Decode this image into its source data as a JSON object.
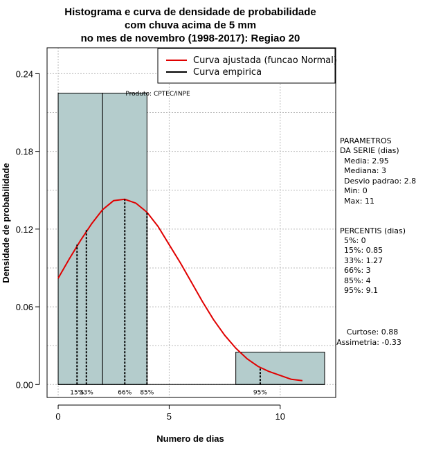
{
  "title_lines": [
    "Histograma e curva de densidade de probabilidade",
    "com chuva acima de 5 mm",
    "no mes de novembro (1998-2017): Regiao 20"
  ],
  "chart_data": {
    "type": "bar",
    "xlabel": "Numero de dias",
    "ylabel": "Densidade de probabilidade",
    "xlim": [
      -0.5,
      12.5
    ],
    "ylim": [
      -0.01,
      0.26
    ],
    "x_ticks": [
      0,
      5,
      10
    ],
    "x_tick_labels": [
      "0",
      "5",
      "10"
    ],
    "y_ticks": [
      0.0,
      0.06,
      0.12,
      0.18,
      0.24
    ],
    "y_tick_labels": [
      "0.00",
      "0.06",
      "0.12",
      "0.18",
      "0.24"
    ],
    "bins": [
      {
        "x0": 0,
        "x1": 2,
        "density": 0.225
      },
      {
        "x0": 2,
        "x1": 4,
        "density": 0.225
      },
      {
        "x0": 4,
        "x1": 6,
        "density": 0.0
      },
      {
        "x0": 6,
        "x1": 8,
        "density": 0.0
      },
      {
        "x0": 8,
        "x1": 12,
        "density": 0.025
      }
    ],
    "grid": true,
    "legend_position": "top-right",
    "bar_color": "#b4cccc",
    "curve_color": "#e00000",
    "series": [
      {
        "name": "Curva ajustada (funcao Normal)",
        "color": "#e00000",
        "x": [
          0,
          0.5,
          1,
          1.5,
          2,
          2.5,
          3,
          3.5,
          4,
          4.5,
          5,
          5.5,
          6,
          6.5,
          7,
          7.5,
          8,
          8.5,
          9,
          9.5,
          10,
          10.5,
          11
        ],
        "y": [
          0.082,
          0.097,
          0.111,
          0.124,
          0.135,
          0.142,
          0.143,
          0.14,
          0.133,
          0.122,
          0.108,
          0.094,
          0.079,
          0.064,
          0.05,
          0.038,
          0.028,
          0.02,
          0.014,
          0.01,
          0.007,
          0.004,
          0.003
        ]
      },
      {
        "name": "Curva empirica",
        "color": "#000000"
      }
    ],
    "percentile_markers": [
      {
        "label": "15%",
        "x": 0.85,
        "y": 0.108
      },
      {
        "label": "33%",
        "x": 1.27,
        "y": 0.12
      },
      {
        "label": "66%",
        "x": 3,
        "y": 0.143
      },
      {
        "label": "85%",
        "x": 4,
        "y": 0.133
      },
      {
        "label": "95%",
        "x": 9.1,
        "y": 0.013
      }
    ],
    "annotation": "Produto: CPTEC/INPE"
  },
  "side_panel": {
    "parametros_lines": [
      "PARAMETROS",
      "DA SERIE (dias)",
      "Media: 2.95",
      "Mediana: 3",
      "Desvio padrao: 2.8",
      "Min: 0",
      "Max: 11"
    ],
    "percentis_lines": [
      "PERCENTIS (dias)",
      "5%: 0",
      "15%: 0.85",
      "33%: 1.27",
      "66%: 3",
      "85%: 4",
      "95%: 9.1"
    ],
    "curtose": "Curtose: 0.88",
    "assimetria": "Assimetria: -0.33"
  }
}
